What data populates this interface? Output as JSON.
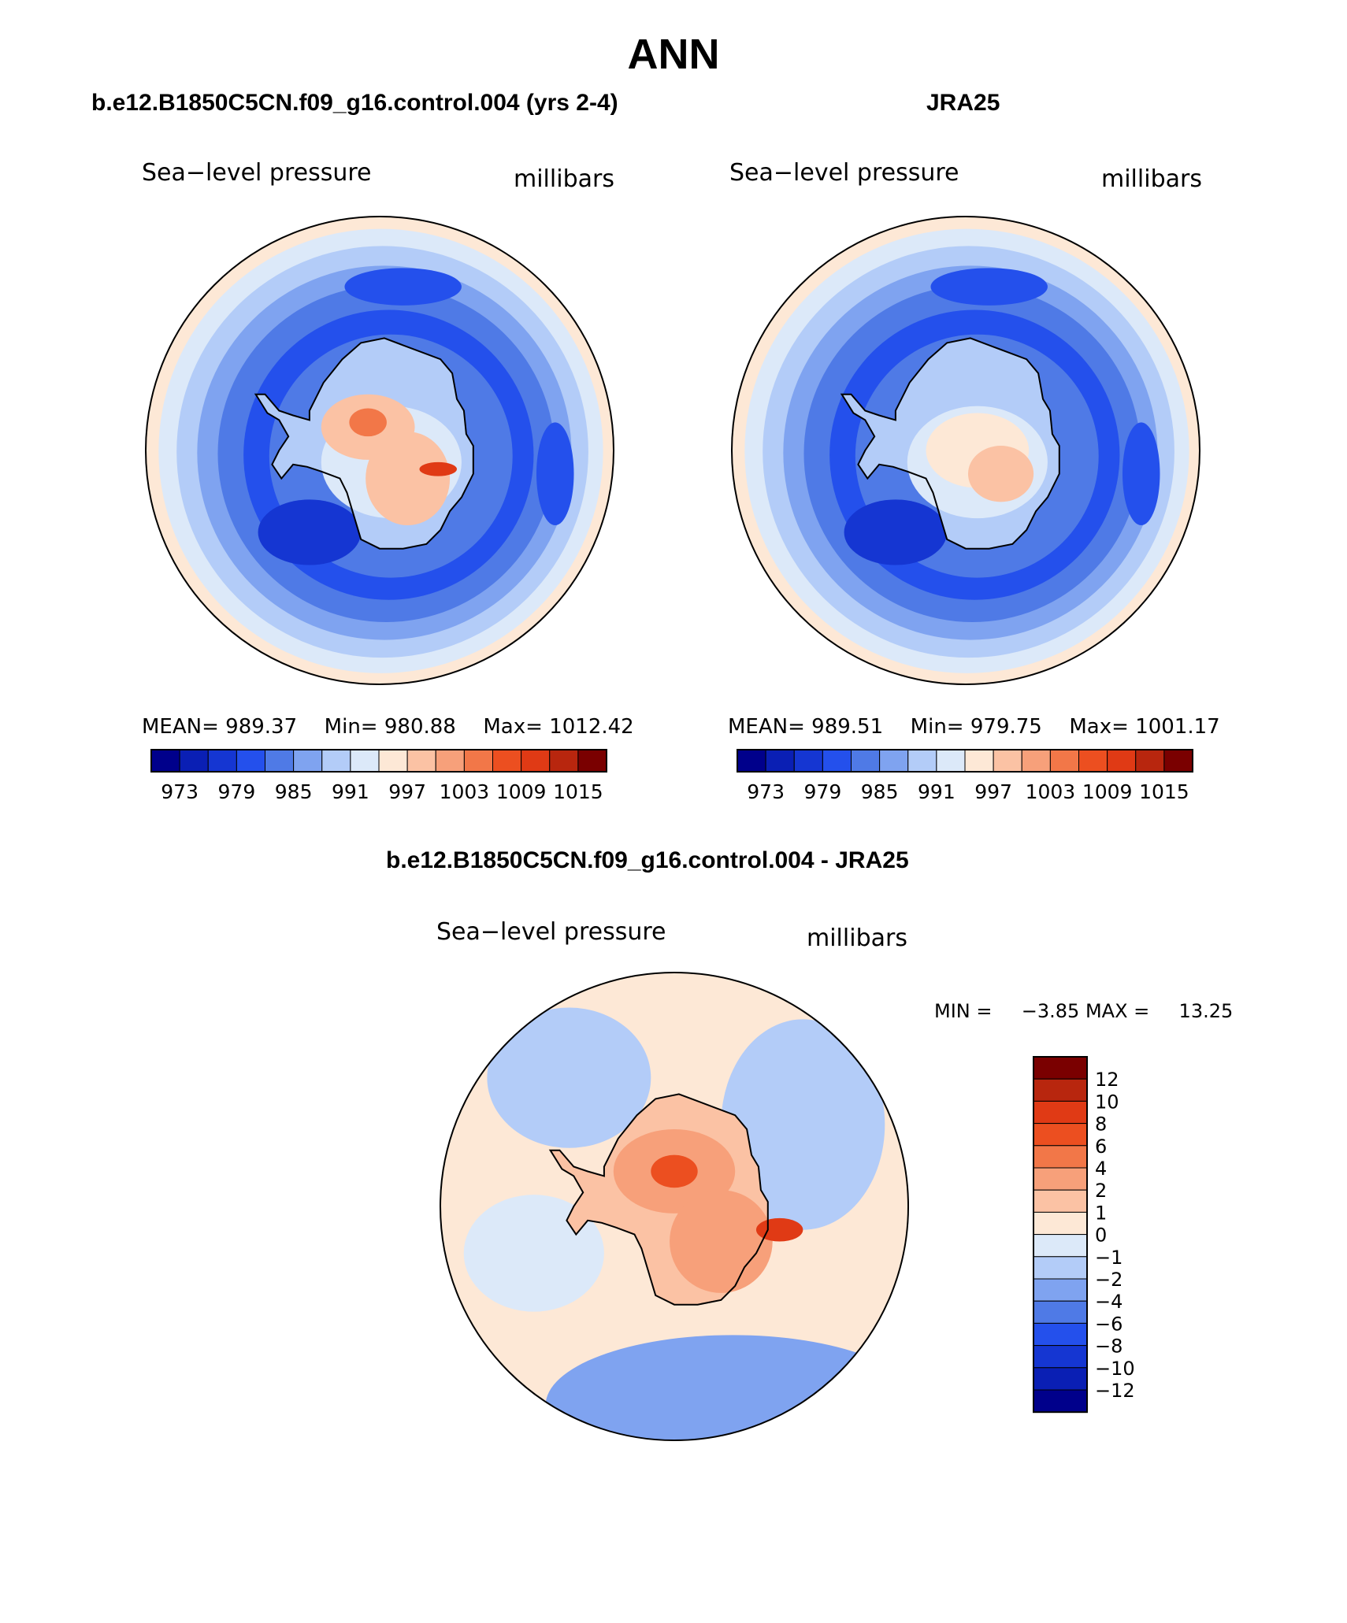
{
  "page": {
    "title": "ANN"
  },
  "colors": {
    "diverging": [
      "#00008b",
      "#0a1fb4",
      "#1536d2",
      "#2450ec",
      "#4f7ae6",
      "#7fa3f0",
      "#b3ccf8",
      "#dce9f9",
      "#fde8d6",
      "#fbc2a4",
      "#f7a07a",
      "#f27748",
      "#ec4f20",
      "#e03a15",
      "#b8260e",
      "#7a0000"
    ],
    "outline": "#000000"
  },
  "chart_data": [
    {
      "type": "heatmap",
      "title": "b.e12.B1850C5CN.f09_g16.control.004 (yrs 2-4)",
      "left_label": "Sea−level pressure",
      "right_label": "millibars",
      "stats": {
        "mean_label": "MEAN=",
        "mean": "989.37",
        "min_label": "Min=",
        "min": "980.88",
        "max_label": "Max=",
        "max": "1012.42"
      },
      "colorbar": {
        "levels": [
          973,
          976,
          979,
          982,
          985,
          988,
          991,
          994,
          997,
          1000,
          1003,
          1006,
          1009,
          1012,
          1015
        ],
        "tick_labels": [
          "973",
          "979",
          "985",
          "991",
          "997",
          "1003",
          "1009",
          "1015"
        ]
      },
      "projection": "south polar stereographic"
    },
    {
      "type": "heatmap",
      "title": "JRA25",
      "left_label": "Sea−level pressure",
      "right_label": "millibars",
      "stats": {
        "mean_label": "MEAN=",
        "mean": "989.51",
        "min_label": "Min=",
        "min": "979.75",
        "max_label": "Max=",
        "max": "1001.17"
      },
      "colorbar": {
        "levels": [
          973,
          976,
          979,
          982,
          985,
          988,
          991,
          994,
          997,
          1000,
          1003,
          1006,
          1009,
          1012,
          1015
        ],
        "tick_labels": [
          "973",
          "979",
          "985",
          "991",
          "997",
          "1003",
          "1009",
          "1015"
        ]
      },
      "projection": "south polar stereographic"
    },
    {
      "type": "heatmap",
      "title": "b.e12.B1850C5CN.f09_g16.control.004 - JRA25",
      "left_label": "Sea−level pressure",
      "right_label": "millibars",
      "stats": {
        "min_label": "MIN =",
        "min": "−3.85",
        "max_label": "MAX =",
        "max": "13.25"
      },
      "colorbar": {
        "orientation": "vertical",
        "levels": [
          "12",
          "10",
          "8",
          "6",
          "4",
          "2",
          "1",
          "0",
          "−1",
          "−2",
          "−4",
          "−6",
          "−8",
          "−10",
          "−12"
        ]
      },
      "projection": "south polar stereographic"
    }
  ]
}
